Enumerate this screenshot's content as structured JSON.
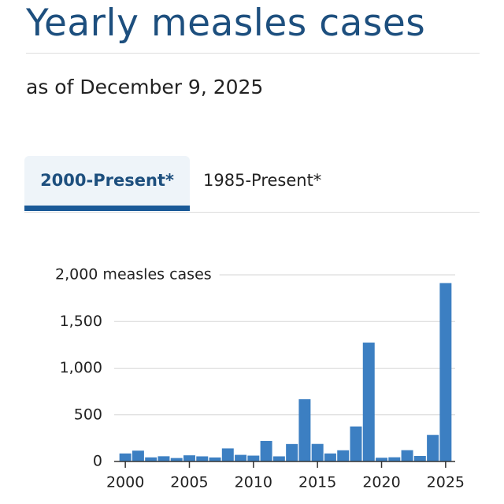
{
  "header": {
    "title": "Yearly measles cases",
    "subtitle": "as of December 9, 2025"
  },
  "tabs": [
    "2000-Present*",
    "1985-Present*"
  ],
  "chart_data": {
    "type": "bar",
    "x": [
      2000,
      2001,
      2002,
      2003,
      2004,
      2005,
      2006,
      2007,
      2008,
      2009,
      2010,
      2011,
      2012,
      2013,
      2014,
      2015,
      2016,
      2017,
      2018,
      2019,
      2020,
      2021,
      2022,
      2023,
      2024,
      2025
    ],
    "values": [
      86,
      116,
      44,
      56,
      37,
      66,
      55,
      43,
      140,
      71,
      63,
      220,
      55,
      187,
      667,
      188,
      86,
      120,
      375,
      1274,
      40,
      45,
      121,
      59,
      285,
      1912
    ],
    "color": "#3c7fc2",
    "xlim": [
      1999.5,
      2025.5
    ],
    "xticks": [
      2000,
      2005,
      2010,
      2015,
      2020,
      2025
    ],
    "ylim": [
      0,
      2000
    ],
    "yticks": [
      0,
      500,
      {
        "value": 1000,
        "label": "1,000"
      },
      {
        "value": 1500,
        "label": "1,500"
      },
      {
        "value": 2000,
        "label": "2,000 measles cases"
      }
    ],
    "grid": true
  }
}
